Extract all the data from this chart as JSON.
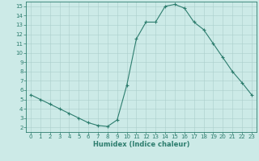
{
  "x": [
    0,
    1,
    2,
    3,
    4,
    5,
    6,
    7,
    8,
    9,
    10,
    11,
    12,
    13,
    14,
    15,
    16,
    17,
    18,
    19,
    20,
    21,
    22,
    23
  ],
  "y": [
    5.5,
    5.0,
    4.5,
    4.0,
    3.5,
    3.0,
    2.5,
    2.2,
    2.1,
    2.8,
    6.5,
    11.5,
    13.3,
    13.3,
    15.0,
    15.2,
    14.8,
    13.3,
    12.5,
    11.0,
    9.5,
    8.0,
    6.8,
    5.5
  ],
  "line_color": "#2d7d6e",
  "marker": "+",
  "marker_color": "#2d7d6e",
  "bg_color": "#cceae7",
  "grid_color": "#aacfcb",
  "tick_color": "#2d7d6e",
  "xlabel": "Humidex (Indice chaleur)",
  "xlabel_fontsize": 6,
  "tick_fontsize": 5,
  "xlim": [
    -0.5,
    23.5
  ],
  "ylim": [
    1.5,
    15.5
  ],
  "yticks": [
    2,
    3,
    4,
    5,
    6,
    7,
    8,
    9,
    10,
    11,
    12,
    13,
    14,
    15
  ],
  "xticks": [
    0,
    1,
    2,
    3,
    4,
    5,
    6,
    7,
    8,
    9,
    10,
    11,
    12,
    13,
    14,
    15,
    16,
    17,
    18,
    19,
    20,
    21,
    22,
    23
  ],
  "linewidth": 0.8,
  "markersize": 3.0
}
